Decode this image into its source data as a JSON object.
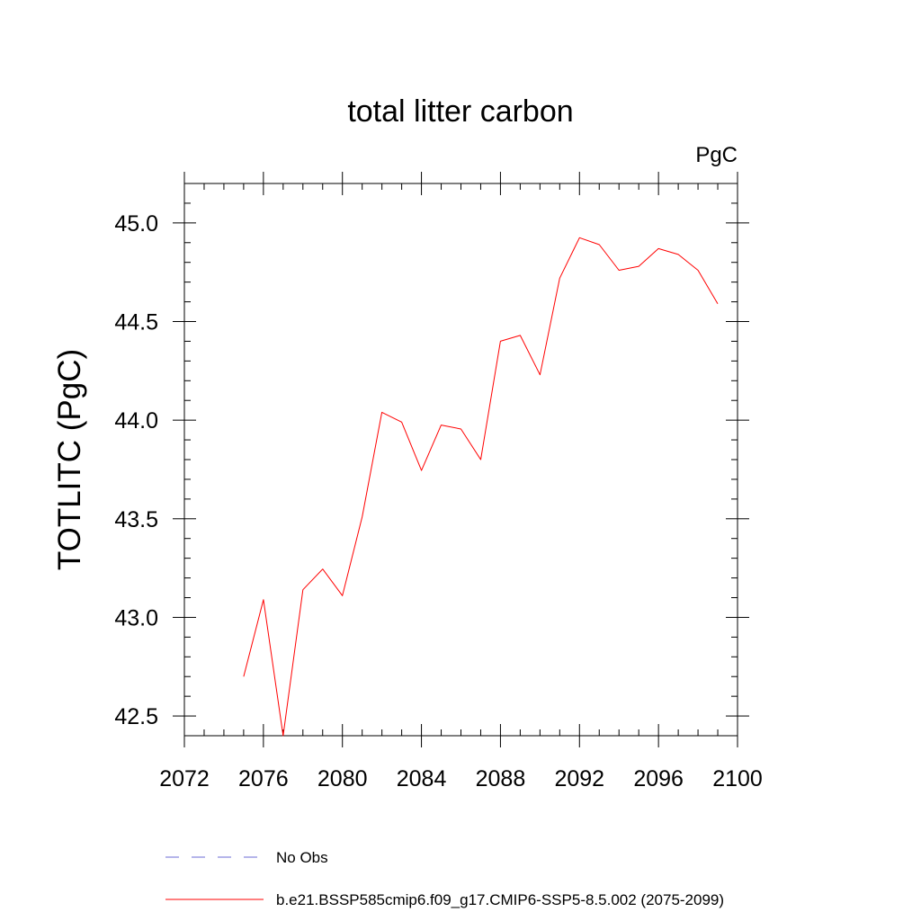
{
  "chart_data": {
    "type": "line",
    "title": "total litter carbon",
    "units": "PgC",
    "ylabel": "TOTLITC  (PgC)",
    "xlabel": "",
    "xlim": [
      2072,
      2100
    ],
    "ylim": [
      42.4,
      45.2
    ],
    "x_ticks": [
      2072,
      2076,
      2080,
      2084,
      2088,
      2092,
      2096,
      2100
    ],
    "x_tick_labels": [
      "2072",
      "2076",
      "2080",
      "2084",
      "2088",
      "2092",
      "2096",
      "2100"
    ],
    "y_ticks": [
      42.5,
      43.0,
      43.5,
      44.0,
      44.5,
      45.0
    ],
    "y_tick_labels": [
      "42.5",
      "43.0",
      "43.5",
      "44.0",
      "44.5",
      "45.0"
    ],
    "grid": false,
    "legend_position": "bottom",
    "series": [
      {
        "name": "b.e21.BSSP585cmip6.f09_g17.CMIP6-SSP5-8.5.002 (2075-2099)",
        "color": "#ff0000",
        "style": "solid",
        "x": [
          2075,
          2076,
          2077,
          2078,
          2079,
          2080,
          2081,
          2082,
          2083,
          2084,
          2085,
          2086,
          2087,
          2088,
          2089,
          2090,
          2091,
          2092,
          2093,
          2094,
          2095,
          2096,
          2097,
          2098,
          2099
        ],
        "values": [
          42.7,
          43.09,
          42.4,
          43.14,
          43.245,
          43.11,
          43.51,
          44.04,
          43.99,
          43.745,
          43.975,
          43.955,
          43.8,
          44.4,
          44.43,
          44.23,
          44.72,
          44.925,
          44.89,
          44.76,
          44.78,
          44.87,
          44.84,
          44.76,
          44.59
        ]
      }
    ],
    "legend": [
      {
        "label": "No Obs",
        "color": "#6b6bd6",
        "style": "dashed"
      },
      {
        "label": "b.e21.BSSP585cmip6.f09_g17.CMIP6-SSP5-8.5.002 (2075-2099)",
        "color": "#ff0000",
        "style": "solid"
      }
    ]
  }
}
